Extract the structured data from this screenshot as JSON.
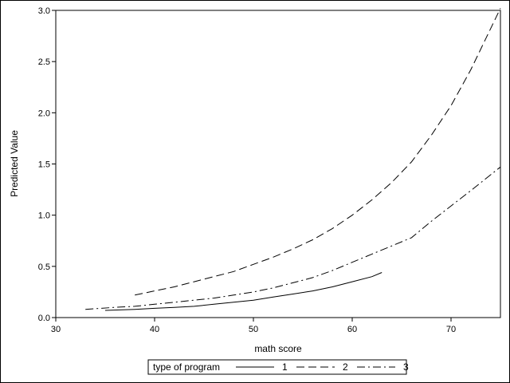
{
  "chart_data": {
    "type": "line",
    "title": "",
    "xlabel": "math score",
    "ylabel": "Predicted Value",
    "xlim": [
      30,
      75
    ],
    "ylim": [
      0,
      3.0
    ],
    "xticks": [
      30,
      40,
      50,
      60,
      70
    ],
    "yticks": [
      0.0,
      0.5,
      1.0,
      1.5,
      2.0,
      2.5,
      3.0
    ],
    "ytick_labels": [
      "0.0",
      "0.5",
      "1.0",
      "1.5",
      "2.0",
      "2.5",
      "3.0"
    ],
    "grid": false,
    "legend": {
      "title": "type of program",
      "placement": "bottom"
    },
    "series": [
      {
        "name": "1",
        "dash": "solid",
        "x": [
          35,
          38,
          40,
          42,
          44,
          46,
          48,
          50,
          52,
          54,
          56,
          58,
          60,
          62,
          63
        ],
        "y": [
          0.07,
          0.08,
          0.09,
          0.1,
          0.11,
          0.13,
          0.15,
          0.17,
          0.2,
          0.23,
          0.26,
          0.3,
          0.35,
          0.4,
          0.44
        ]
      },
      {
        "name": "2",
        "dash": "dash",
        "x": [
          38,
          40,
          42,
          44,
          46,
          48,
          50,
          52,
          54,
          56,
          58,
          60,
          62,
          64,
          66,
          68,
          70,
          72,
          75
        ],
        "y": [
          0.22,
          0.26,
          0.3,
          0.35,
          0.4,
          0.45,
          0.52,
          0.59,
          0.67,
          0.76,
          0.87,
          1.0,
          1.15,
          1.32,
          1.52,
          1.78,
          2.07,
          2.42,
          3.02
        ]
      },
      {
        "name": "3",
        "dash": "dashdot",
        "x": [
          33,
          36,
          38,
          40,
          42,
          44,
          46,
          48,
          50,
          52,
          54,
          56,
          58,
          60,
          62,
          64,
          66,
          68,
          70,
          72,
          75
        ],
        "y": [
          0.08,
          0.1,
          0.11,
          0.13,
          0.15,
          0.17,
          0.19,
          0.22,
          0.25,
          0.29,
          0.34,
          0.39,
          0.46,
          0.54,
          0.62,
          0.7,
          0.78,
          0.94,
          1.09,
          1.24,
          1.47
        ]
      }
    ]
  }
}
